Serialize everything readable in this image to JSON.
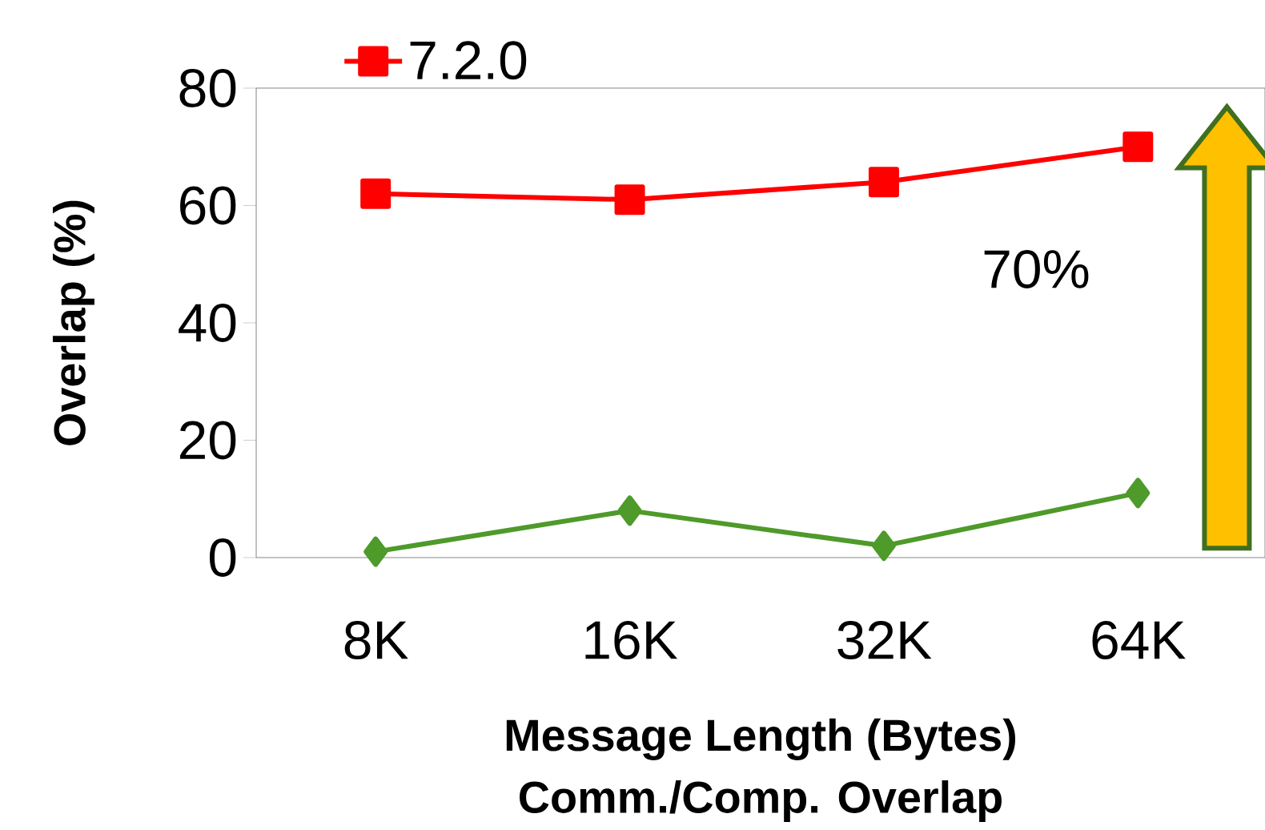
{
  "chart_data": {
    "type": "line",
    "title": "Comm./Comp. Overlap",
    "xlabel": "Message Length (Bytes)",
    "ylabel": "Overlap (%)",
    "categories": [
      "8K",
      "16K",
      "32K",
      "64K"
    ],
    "series": [
      {
        "name": "7.2.0",
        "color": "#ff0000",
        "marker": "square",
        "values": [
          62,
          61,
          64,
          70
        ]
      },
      {
        "color": "#4e9a2a",
        "marker": "diamond",
        "values": [
          1,
          8,
          2,
          11
        ]
      }
    ],
    "ylim": [
      0,
      80
    ],
    "yticks": [
      0,
      20,
      40,
      60,
      80
    ],
    "grid": false,
    "legend": "top",
    "line_style": "solid",
    "annotations": [
      "70%"
    ]
  }
}
